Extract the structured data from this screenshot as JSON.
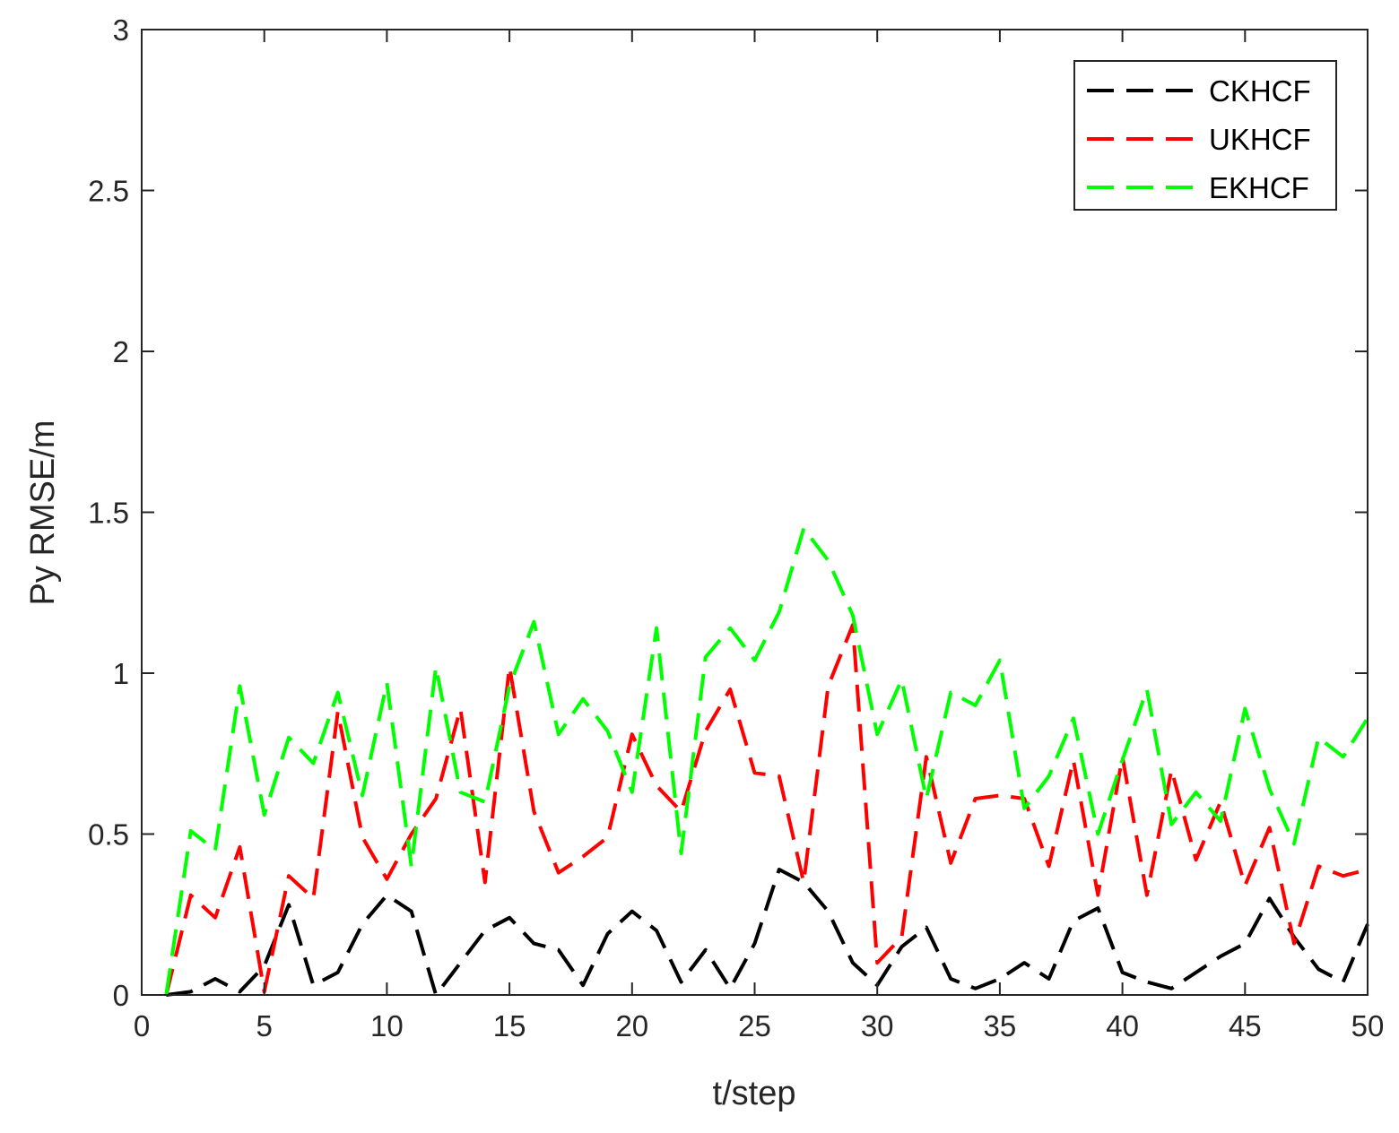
{
  "chart_data": {
    "type": "line",
    "xlabel": "t/step",
    "ylabel": "Py RMSE/m",
    "xlim": [
      0,
      50
    ],
    "ylim": [
      0,
      3
    ],
    "xticks": [
      0,
      5,
      10,
      15,
      20,
      25,
      30,
      35,
      40,
      45,
      50
    ],
    "yticks": [
      0,
      0.5,
      1,
      1.5,
      2,
      2.5,
      3
    ],
    "ytick_labels": [
      "0",
      "0.5",
      "1",
      "1.5",
      "2",
      "2.5",
      "3"
    ],
    "grid": false,
    "legend_position": "top-right",
    "line_style": "dashed",
    "x": [
      1,
      2,
      3,
      4,
      5,
      6,
      7,
      8,
      9,
      10,
      11,
      12,
      13,
      14,
      15,
      16,
      17,
      18,
      19,
      20,
      21,
      22,
      23,
      24,
      25,
      26,
      27,
      28,
      29,
      30,
      31,
      32,
      33,
      34,
      35,
      36,
      37,
      38,
      39,
      40,
      41,
      42,
      43,
      44,
      45,
      46,
      47,
      48,
      49,
      50
    ],
    "series": [
      {
        "name": "CKHCF",
        "color": "#000000",
        "values": [
          0,
          0.01,
          0.05,
          0.01,
          0.09,
          0.28,
          0.03,
          0.07,
          0.22,
          0.31,
          0.26,
          0,
          0.1,
          0.2,
          0.24,
          0.16,
          0.14,
          0.03,
          0.19,
          0.26,
          0.2,
          0.04,
          0.14,
          0.02,
          0.16,
          0.39,
          0.35,
          0.26,
          0.1,
          0.03,
          0.15,
          0.21,
          0.05,
          0.02,
          0.05,
          0.1,
          0.05,
          0.23,
          0.27,
          0.07,
          0.04,
          0.02,
          0.07,
          0.12,
          0.16,
          0.3,
          0.18,
          0.08,
          0.04,
          0.22
        ]
      },
      {
        "name": "UKHCF",
        "color": "#ff0000",
        "values": [
          0,
          0.31,
          0.24,
          0.46,
          0.01,
          0.37,
          0.3,
          0.88,
          0.49,
          0.36,
          0.5,
          0.61,
          0.89,
          0.35,
          1.02,
          0.57,
          0.38,
          0.43,
          0.49,
          0.81,
          0.65,
          0.57,
          0.82,
          0.95,
          0.69,
          0.68,
          0.35,
          0.96,
          1.15,
          0.1,
          0.18,
          0.74,
          0.41,
          0.61,
          0.62,
          0.61,
          0.4,
          0.73,
          0.31,
          0.74,
          0.31,
          0.7,
          0.42,
          0.6,
          0.34,
          0.52,
          0.16,
          0.4,
          0.37,
          0.39
        ]
      },
      {
        "name": "EKHCF",
        "color": "#00ff00",
        "values": [
          0,
          0.51,
          0.45,
          0.96,
          0.56,
          0.8,
          0.72,
          0.94,
          0.62,
          0.97,
          0.4,
          1.02,
          0.63,
          0.6,
          0.96,
          1.16,
          0.81,
          0.92,
          0.82,
          0.63,
          1.14,
          0.44,
          1.05,
          1.14,
          1.04,
          1.19,
          1.45,
          1.35,
          1.18,
          0.81,
          0.98,
          0.61,
          0.94,
          0.9,
          1.04,
          0.58,
          0.68,
          0.86,
          0.5,
          0.73,
          0.95,
          0.53,
          0.63,
          0.54,
          0.89,
          0.64,
          0.47,
          0.8,
          0.74,
          0.86
        ]
      }
    ]
  }
}
